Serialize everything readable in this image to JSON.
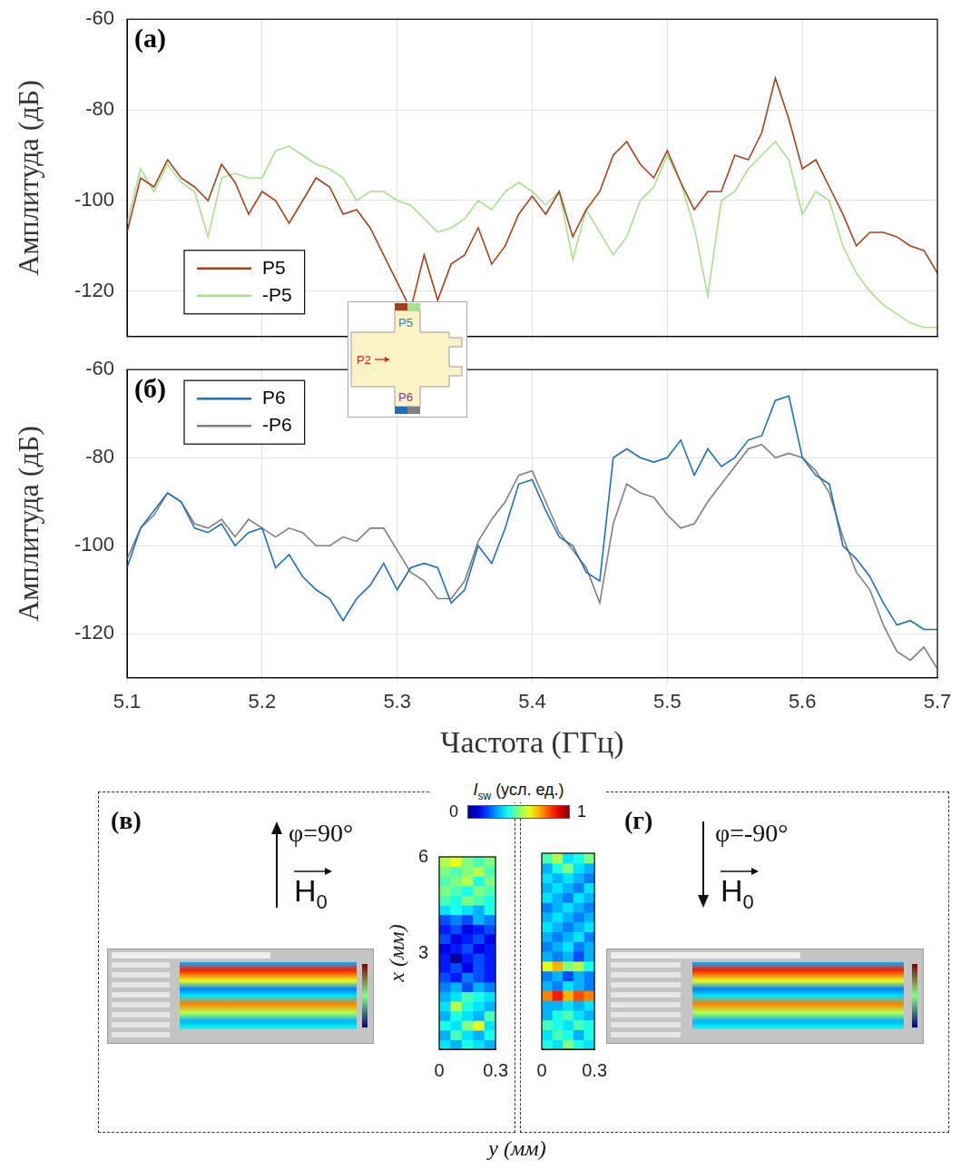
{
  "chart_data": [
    {
      "type": "line",
      "title": "(а)",
      "y_label": "Амплитуда (дБ)",
      "xlim": [
        5.1,
        5.7
      ],
      "ylim": [
        -130,
        -60
      ],
      "xticks": [
        5.1,
        5.2,
        5.3,
        5.4,
        5.5,
        5.6,
        5.7
      ],
      "yticks": [
        -120,
        -100,
        -80,
        -60
      ],
      "grid": true,
      "tick_labels": "y",
      "legend": "lower left",
      "x": [
        5.1,
        5.11,
        5.12,
        5.13,
        5.14,
        5.15,
        5.16,
        5.17,
        5.18,
        5.19,
        5.2,
        5.21,
        5.22,
        5.23,
        5.24,
        5.25,
        5.26,
        5.27,
        5.28,
        5.29,
        5.3,
        5.31,
        5.32,
        5.33,
        5.34,
        5.35,
        5.36,
        5.37,
        5.38,
        5.39,
        5.4,
        5.41,
        5.42,
        5.43,
        5.44,
        5.45,
        5.46,
        5.47,
        5.48,
        5.49,
        5.5,
        5.51,
        5.52,
        5.53,
        5.54,
        5.55,
        5.56,
        5.57,
        5.58,
        5.59,
        5.6,
        5.61,
        5.62,
        5.63,
        5.64,
        5.65,
        5.66,
        5.67,
        5.68,
        5.69,
        5.7
      ],
      "series": [
        {
          "name": "P5",
          "color": "#a0441c",
          "values": [
            -107,
            -95,
            -97,
            -91,
            -95,
            -97,
            -100,
            -92,
            -96,
            -103,
            -98,
            -100,
            -105,
            -100,
            -95,
            -97,
            -103,
            -102,
            -106,
            -112,
            -118,
            -124,
            -112,
            -122,
            -114,
            -112,
            -106,
            -114,
            -110,
            -103,
            -99,
            -103,
            -98,
            -108,
            -102,
            -98,
            -90,
            -87,
            -92,
            -95,
            -89,
            -96,
            -102,
            -98,
            -98,
            -90,
            -91,
            -85,
            -73,
            -82,
            -93,
            -91,
            -97,
            -103,
            -110,
            -107,
            -107,
            -108,
            -110,
            -111,
            -116
          ]
        },
        {
          "name": "-P5",
          "color": "#a8e08e",
          "values": [
            -105,
            -93,
            -98,
            -92,
            -96,
            -98,
            -108,
            -95,
            -94,
            -95,
            -95,
            -89,
            -88,
            -90,
            -92,
            -93,
            -95,
            -100,
            -98,
            -98,
            -100,
            -101,
            -104,
            -107,
            -106,
            -104,
            -100,
            -102,
            -98,
            -96,
            -98,
            -101,
            -98,
            -113,
            -102,
            -107,
            -112,
            -108,
            -100,
            -97,
            -90,
            -96,
            -106,
            -121,
            -100,
            -98,
            -93,
            -90,
            -87,
            -91,
            -103,
            -98,
            -100,
            -110,
            -116,
            -120,
            -123,
            -125,
            -127,
            -128,
            -128
          ]
        }
      ]
    },
    {
      "type": "line",
      "title": "(б)",
      "x_label": "Частота (ГГц)",
      "y_label": "Амплитуда (дБ)",
      "xlim": [
        5.1,
        5.7
      ],
      "ylim": [
        -130,
        -60
      ],
      "xticks": [
        5.1,
        5.2,
        5.3,
        5.4,
        5.5,
        5.6,
        5.7
      ],
      "yticks": [
        -120,
        -100,
        -80,
        -60
      ],
      "grid": true,
      "legend": "upper left",
      "x": [
        5.1,
        5.11,
        5.12,
        5.13,
        5.14,
        5.15,
        5.16,
        5.17,
        5.18,
        5.19,
        5.2,
        5.21,
        5.22,
        5.23,
        5.24,
        5.25,
        5.26,
        5.27,
        5.28,
        5.29,
        5.3,
        5.31,
        5.32,
        5.33,
        5.34,
        5.35,
        5.36,
        5.37,
        5.38,
        5.39,
        5.4,
        5.41,
        5.42,
        5.43,
        5.44,
        5.45,
        5.46,
        5.47,
        5.48,
        5.49,
        5.5,
        5.51,
        5.52,
        5.53,
        5.54,
        5.55,
        5.56,
        5.57,
        5.58,
        5.59,
        5.6,
        5.61,
        5.62,
        5.63,
        5.64,
        5.65,
        5.66,
        5.67,
        5.68,
        5.69,
        5.7
      ],
      "series": [
        {
          "name": "P6",
          "color": "#1f6fb8",
          "values": [
            -105,
            -96,
            -92,
            -88,
            -90,
            -96,
            -97,
            -95,
            -100,
            -97,
            -96,
            -105,
            -102,
            -107,
            -110,
            -112,
            -117,
            -112,
            -109,
            -104,
            -110,
            -105,
            -104,
            -105,
            -113,
            -110,
            -100,
            -104,
            -96,
            -86,
            -85,
            -92,
            -98,
            -100,
            -106,
            -108,
            -80,
            -78,
            -80,
            -81,
            -80,
            -76,
            -84,
            -78,
            -82,
            -80,
            -76,
            -75,
            -67,
            -66,
            -80,
            -84,
            -86,
            -100,
            -103,
            -107,
            -113,
            -118,
            -117,
            -119,
            -119
          ]
        },
        {
          "name": "-P6",
          "color": "#7f7f7f",
          "values": [
            -103,
            -96,
            -93,
            -88,
            -90,
            -95,
            -96,
            -94,
            -98,
            -94,
            -96,
            -98,
            -96,
            -97,
            -100,
            -100,
            -98,
            -99,
            -96,
            -96,
            -101,
            -106,
            -108,
            -112,
            -112,
            -108,
            -99,
            -94,
            -90,
            -84,
            -83,
            -90,
            -97,
            -101,
            -105,
            -113,
            -95,
            -86,
            -88,
            -89,
            -93,
            -96,
            -95,
            -90,
            -86,
            -82,
            -78,
            -77,
            -80,
            -79,
            -80,
            -83,
            -88,
            -98,
            -106,
            -110,
            -118,
            -124,
            -126,
            -123,
            -128
          ]
        }
      ]
    },
    {
      "type": "heatmap",
      "y_label": "x (мм)",
      "xlim": [
        0,
        0.3
      ],
      "ylim": [
        0,
        6
      ],
      "xticks": [
        0,
        0.3
      ],
      "yticks": [
        3,
        6
      ],
      "cells": [
        [
          0.35,
          0.3,
          0.4,
          0.35,
          0.3
        ],
        [
          0.3,
          0.45,
          0.35,
          0.3,
          0.4
        ],
        [
          0.4,
          0.35,
          0.5,
          0.6,
          0.35
        ],
        [
          0.3,
          0.4,
          0.35,
          0.3,
          0.45
        ],
        [
          0.35,
          0.55,
          0.4,
          0.35,
          0.3
        ],
        [
          0.3,
          0.35,
          0.45,
          0.4,
          0.35
        ],
        [
          0.25,
          0.3,
          0.2,
          0.3,
          0.25
        ],
        [
          0.2,
          0.15,
          0.25,
          0.2,
          0.15
        ],
        [
          0.15,
          0.2,
          0.1,
          0.2,
          0.15
        ],
        [
          0.15,
          0.02,
          0.15,
          0.2,
          0.15
        ],
        [
          0.1,
          0.15,
          0.2,
          0.1,
          0.15
        ],
        [
          0.2,
          0.1,
          0.15,
          0.2,
          0.1
        ],
        [
          0.15,
          0.2,
          0.1,
          0.15,
          0.2
        ],
        [
          0.2,
          0.25,
          0.2,
          0.3,
          0.25
        ],
        [
          0.35,
          0.4,
          0.35,
          0.3,
          0.4
        ],
        [
          0.45,
          0.4,
          0.5,
          0.45,
          0.4
        ],
        [
          0.5,
          0.45,
          0.4,
          0.5,
          0.45
        ],
        [
          0.45,
          0.5,
          0.55,
          0.4,
          0.5
        ],
        [
          0.5,
          0.45,
          0.5,
          0.55,
          0.45
        ],
        [
          0.55,
          0.6,
          0.5,
          0.45,
          0.5
        ]
      ]
    },
    {
      "type": "heatmap",
      "xlim": [
        0,
        0.3
      ],
      "ylim": [
        0,
        6
      ],
      "xticks": [
        0,
        0.3
      ],
      "tick_labels": "x",
      "cells": [
        [
          0.4,
          0.35,
          0.5,
          0.4,
          0.35
        ],
        [
          0.35,
          0.45,
          0.4,
          0.3,
          0.4
        ],
        [
          0.45,
          0.4,
          0.35,
          0.45,
          0.4
        ],
        [
          0.3,
          0.4,
          0.45,
          0.35,
          0.3
        ],
        [
          0.3,
          0.3,
          0.35,
          0.3,
          0.35
        ],
        [
          0.75,
          0.85,
          0.7,
          0.8,
          0.75
        ],
        [
          0.3,
          0.25,
          0.35,
          0.3,
          0.25
        ],
        [
          0.25,
          0.3,
          0.2,
          0.3,
          0.25
        ],
        [
          0.6,
          0.7,
          0.5,
          0.55,
          0.4
        ],
        [
          0.3,
          0.25,
          0.3,
          0.2,
          0.3
        ],
        [
          0.25,
          0.3,
          0.35,
          0.25,
          0.3
        ],
        [
          0.3,
          0.25,
          0.3,
          0.35,
          0.25
        ],
        [
          0.35,
          0.3,
          0.25,
          0.3,
          0.35
        ],
        [
          0.3,
          0.35,
          0.3,
          0.25,
          0.3
        ],
        [
          0.25,
          0.3,
          0.35,
          0.3,
          0.25
        ],
        [
          0.35,
          0.3,
          0.25,
          0.35,
          0.3
        ],
        [
          0.3,
          0.35,
          0.3,
          0.25,
          0.35
        ],
        [
          0.35,
          0.3,
          0.35,
          0.3,
          0.25
        ],
        [
          0.3,
          0.4,
          0.5,
          0.35,
          0.3
        ],
        [
          0.45,
          0.55,
          0.35,
          0.4,
          0.5
        ]
      ]
    }
  ],
  "heatmap_shared": {
    "x_label": "y (мм)",
    "colorbar": {
      "symbol": "I",
      "sub": "sw",
      "unit": "(усл. ед.)",
      "range": [
        0,
        1
      ],
      "ticks": [
        0,
        1
      ]
    }
  },
  "field_panels": [
    {
      "label": "(в)",
      "angle": "φ=90°",
      "direction": "up",
      "vector": "H",
      "vector_sub": "0"
    },
    {
      "label": "(г)",
      "angle": "φ=-90°",
      "direction": "down",
      "vector": "H",
      "vector_sub": "0"
    }
  ],
  "inset": {
    "top": "P5",
    "left": "P2",
    "bottom": "P6"
  }
}
